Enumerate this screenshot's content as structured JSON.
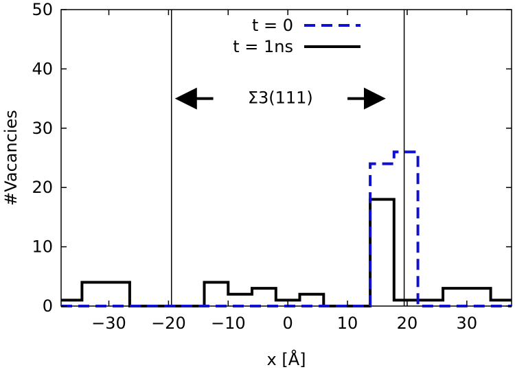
{
  "chart_data": {
    "type": "line",
    "step": true,
    "xlabel": "x [Å]",
    "ylabel": "#Vacancies",
    "xlim": [
      -38,
      37.5
    ],
    "ylim": [
      0,
      50
    ],
    "xticks": [
      -30,
      -20,
      -10,
      0,
      10,
      20,
      30
    ],
    "yticks": [
      0,
      10,
      20,
      30,
      40,
      50
    ],
    "xtick_labels": [
      "−30",
      "−20",
      "−10",
      "0",
      "10",
      "20",
      "30"
    ],
    "ytick_labels": [
      "0",
      "10",
      "20",
      "30",
      "40",
      "50"
    ],
    "grid": false,
    "legend_position": "top-center",
    "colors": {
      "t0": "#1010d0",
      "t1ns": "#000000",
      "boundary": "#000000"
    },
    "series": [
      {
        "name": "t = 0",
        "style": "dashed",
        "color": "#1010d0",
        "x": [
          -38,
          13.8,
          13.8,
          17.8,
          17.8,
          21.8,
          21.8,
          37.5
        ],
        "values": [
          0,
          0,
          24,
          24,
          26,
          26,
          0,
          0
        ]
      },
      {
        "name": "t = 1ns",
        "style": "solid",
        "color": "#000000",
        "x": [
          -38,
          -34.5,
          -34.5,
          -26.5,
          -26.5,
          -14,
          -14,
          -10,
          -10,
          -6,
          -6,
          -2,
          -2,
          2,
          2,
          6,
          6,
          13.8,
          13.8,
          17.8,
          17.8,
          26,
          26,
          34,
          34,
          37.5
        ],
        "values": [
          1,
          1,
          4,
          4,
          0,
          0,
          4,
          4,
          2,
          2,
          3,
          3,
          1,
          1,
          2,
          2,
          0,
          0,
          18,
          18,
          1,
          1,
          3,
          3,
          1,
          1
        ]
      }
    ],
    "boundaries": [
      -19.5,
      19.5
    ],
    "annotation": {
      "text": "Σ3(111)",
      "arrow_left_x": [
        -12.5,
        -18
      ],
      "arrow_right_x": [
        10,
        15.5
      ],
      "y": 35
    }
  }
}
